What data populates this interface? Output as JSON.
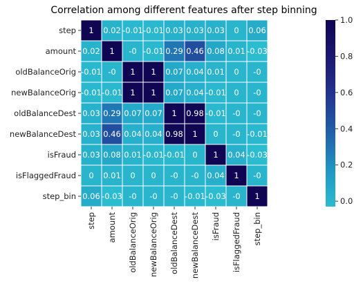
{
  "chart_data": {
    "type": "heatmap",
    "title": "Correlation among different features after step binning",
    "xlabel": "",
    "ylabel": "",
    "labels": [
      "step",
      "amount",
      "oldBalanceOrig",
      "newBalanceOrig",
      "oldBalanceDest",
      "newBalanceDest",
      "isFraud",
      "isFlaggedFraud",
      "step_bin"
    ],
    "matrix": [
      [
        "1",
        "0.02",
        "-0.01",
        "-0.01",
        "0.03",
        "0.03",
        "0.03",
        "0",
        "0.06"
      ],
      [
        "0.02",
        "1",
        "-0",
        "-0.01",
        "0.29",
        "0.46",
        "0.08",
        "0.01",
        "-0.03"
      ],
      [
        "-0.01",
        "-0",
        "1",
        "1",
        "0.07",
        "0.04",
        "0.01",
        "0",
        "-0"
      ],
      [
        "-0.01",
        "-0.01",
        "1",
        "1",
        "0.07",
        "0.04",
        "-0.01",
        "0",
        "-0"
      ],
      [
        "0.03",
        "0.29",
        "0.07",
        "0.07",
        "1",
        "0.98",
        "-0.01",
        "-0",
        "-0"
      ],
      [
        "0.03",
        "0.46",
        "0.04",
        "0.04",
        "0.98",
        "1",
        "0",
        "-0",
        "-0.01"
      ],
      [
        "0.03",
        "0.08",
        "0.01",
        "-0.01",
        "-0.01",
        "0",
        "1",
        "0.04",
        "-0.03"
      ],
      [
        "0",
        "0.01",
        "0",
        "0",
        "-0",
        "-0",
        "0.04",
        "1",
        "-0"
      ],
      [
        "0.06",
        "-0.03",
        "-0",
        "-0",
        "-0",
        "-0.01",
        "-0.03",
        "-0",
        "1"
      ]
    ],
    "colorbar": {
      "ticks": [
        "0.0",
        "0.2",
        "0.4",
        "0.6",
        "0.8",
        "1.0"
      ],
      "range": [
        -0.03,
        1.0
      ],
      "colors": [
        "#2bbccf",
        "#1f95c2",
        "#215ea8",
        "#24338f",
        "#1b1771",
        "#0f0552"
      ]
    },
    "grid": true,
    "legend": "colorbar-right"
  }
}
